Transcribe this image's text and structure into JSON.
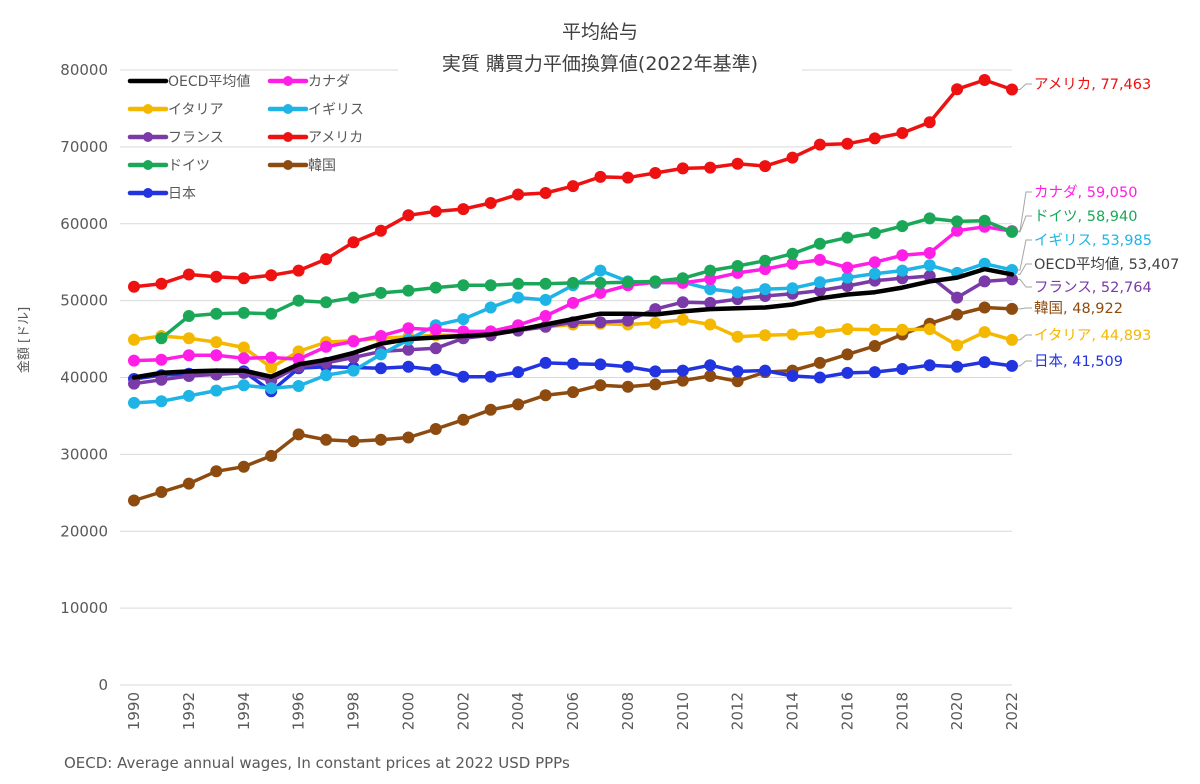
{
  "chart_data": {
    "type": "line",
    "title": "平均給与",
    "subtitle": "実質 購買力平価換算値(2022年基準)",
    "ylabel": "金額 [ドル]",
    "xlabel": "",
    "source": "OECD: Average annual wages, In constant prices at 2022 USD PPPs",
    "ylim": [
      0,
      80000
    ],
    "yticks": [
      "0",
      "10000",
      "20000",
      "30000",
      "40000",
      "50000",
      "60000",
      "70000",
      "80000"
    ],
    "xticks": [
      "1990",
      "1992",
      "1994",
      "1996",
      "1998",
      "2000",
      "2002",
      "2004",
      "2006",
      "2008",
      "2010",
      "2012",
      "2014",
      "2016",
      "2018",
      "2020",
      "2022"
    ],
    "x": [
      1990,
      1991,
      1992,
      1993,
      1994,
      1995,
      1996,
      1997,
      1998,
      1999,
      2000,
      2001,
      2002,
      2003,
      2004,
      2005,
      2006,
      2007,
      2008,
      2009,
      2010,
      2011,
      2012,
      2013,
      2014,
      2015,
      2016,
      2017,
      2018,
      2019,
      2020,
      2021,
      2022
    ],
    "grid": "horizontal",
    "legend_position": "top-left",
    "series": [
      {
        "name": "OECD平均値",
        "color": "#000000",
        "markers": false,
        "end_label": "OECD平均値, 53,407",
        "values": [
          40000,
          40600,
          40800,
          40900,
          40900,
          40100,
          41700,
          42300,
          43200,
          44400,
          45000,
          45200,
          45400,
          45600,
          46200,
          46900,
          47600,
          48300,
          48300,
          48200,
          48600,
          48900,
          49000,
          49100,
          49500,
          50300,
          50800,
          51100,
          51700,
          52500,
          53000,
          54100,
          53407
        ]
      },
      {
        "name": "カナダ",
        "color": "#ff1ee5",
        "markers": true,
        "end_label": "カナダ, 59,050",
        "values": [
          42200,
          42300,
          42900,
          42900,
          42500,
          42600,
          42400,
          44000,
          44700,
          45400,
          46400,
          46200,
          46000,
          46000,
          46800,
          48000,
          49700,
          51000,
          52000,
          52400,
          52300,
          52800,
          53600,
          54100,
          54800,
          55300,
          54300,
          55000,
          55900,
          56200,
          59100,
          59600,
          59050
        ]
      },
      {
        "name": "イタリア",
        "color": "#f5b800",
        "markers": true,
        "end_label": "イタリア, 44,893",
        "values": [
          44900,
          45400,
          45100,
          44600,
          43900,
          41300,
          43400,
          44600,
          44800,
          45100,
          45300,
          45500,
          45500,
          45500,
          46200,
          46600,
          46900,
          47000,
          46900,
          47100,
          47500,
          46900,
          45300,
          45500,
          45600,
          45900,
          46300,
          46200,
          46200,
          46300,
          44200,
          45900,
          44893
        ]
      },
      {
        "name": "イギリス",
        "color": "#1eb4e6",
        "markers": true,
        "end_label": "イギリス, 53,985",
        "values": [
          36700,
          36900,
          37600,
          38300,
          39000,
          38600,
          38900,
          40300,
          40900,
          43000,
          44900,
          46800,
          47600,
          49100,
          50400,
          50100,
          52000,
          53900,
          52500,
          52300,
          52400,
          51500,
          51100,
          51500,
          51600,
          52400,
          53000,
          53500,
          53900,
          54600,
          53600,
          54800,
          53985
        ]
      },
      {
        "name": "フランス",
        "color": "#7a3aa8",
        "markers": true,
        "end_label": "フランス, 52,764",
        "values": [
          39200,
          39700,
          40200,
          40400,
          40600,
          39600,
          41400,
          41900,
          42600,
          43400,
          43600,
          43800,
          45100,
          45500,
          46100,
          46600,
          47200,
          47200,
          47400,
          48900,
          49800,
          49700,
          50200,
          50600,
          50900,
          51300,
          51900,
          52600,
          52900,
          53200,
          50400,
          52500,
          52764
        ]
      },
      {
        "name": "アメリカ",
        "color": "#ee1111",
        "markers": true,
        "end_label": "アメリカ, 77,463",
        "values": [
          51800,
          52200,
          53400,
          53100,
          52900,
          53300,
          53900,
          55400,
          57600,
          59100,
          61100,
          61600,
          61900,
          62700,
          63800,
          64000,
          64900,
          66100,
          66000,
          66600,
          67200,
          67300,
          67800,
          67500,
          68600,
          70300,
          70400,
          71100,
          71800,
          73200,
          77500,
          78700,
          77463
        ]
      },
      {
        "name": "ドイツ",
        "color": "#1aa858",
        "markers": true,
        "end_label": "ドイツ, 58,940",
        "values": [
          null,
          45100,
          48000,
          48300,
          48400,
          48300,
          50000,
          49800,
          50400,
          51000,
          51300,
          51700,
          52000,
          52000,
          52200,
          52200,
          52300,
          52300,
          52400,
          52500,
          52900,
          53900,
          54500,
          55200,
          56100,
          57400,
          58200,
          58800,
          59700,
          60700,
          60300,
          60400,
          58940
        ]
      },
      {
        "name": "韓国",
        "color": "#8e4b10",
        "markers": true,
        "end_label": "韓国, 48,922",
        "values": [
          24000,
          25100,
          26200,
          27800,
          28400,
          29800,
          32600,
          31900,
          31700,
          31900,
          32200,
          33300,
          34500,
          35800,
          36500,
          37700,
          38100,
          39000,
          38800,
          39100,
          39600,
          40200,
          39500,
          40700,
          40900,
          41900,
          43000,
          44100,
          45600,
          47000,
          48200,
          49100,
          48922
        ]
      },
      {
        "name": "日本",
        "color": "#2233e0",
        "markers": true,
        "end_label": "日本, 41,509",
        "values": [
          39800,
          40300,
          40500,
          40400,
          40800,
          38200,
          41200,
          41400,
          41300,
          41200,
          41400,
          41000,
          40100,
          40100,
          40700,
          41900,
          41800,
          41700,
          41400,
          40800,
          40900,
          41600,
          40800,
          40900,
          40200,
          40000,
          40600,
          40700,
          41100,
          41600,
          41400,
          42000,
          41509
        ]
      }
    ]
  }
}
